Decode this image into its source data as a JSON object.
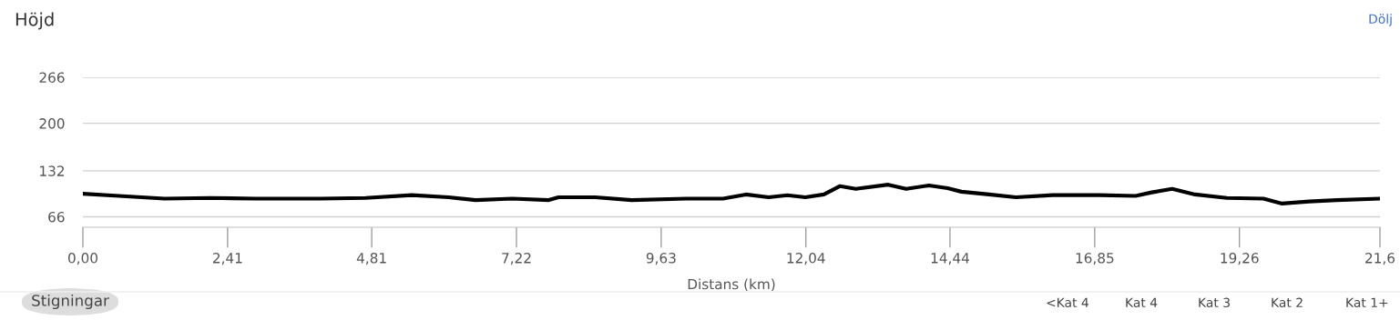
{
  "chart_data": {
    "type": "line",
    "title": "Höjd",
    "xlabel": "Distans (km)",
    "x": [
      0,
      0.6,
      1.36,
      2.12,
      2.88,
      3.95,
      4.71,
      5.48,
      6.09,
      6.54,
      7.15,
      7.76,
      7.92,
      8.53,
      9.14,
      10.05,
      10.66,
      11.04,
      11.42,
      11.73,
      12.03,
      12.34,
      12.61,
      12.87,
      13.41,
      13.71,
      14.09,
      14.4,
      14.63,
      15.09,
      15.54,
      16.15,
      16.92,
      17.53,
      17.8,
      18.14,
      18.52,
      19.05,
      19.66,
      19.97,
      20.42,
      20.88,
      21.6
    ],
    "series": [
      {
        "color": "#000000",
        "values": [
          99,
          96,
          92,
          93,
          92,
          92,
          93,
          97,
          94,
          90,
          92,
          90,
          94,
          94,
          90,
          92,
          92,
          98,
          94,
          97,
          94,
          98,
          110,
          106,
          112,
          106,
          111,
          107,
          102,
          98,
          94,
          97,
          97,
          96,
          101,
          106,
          98,
          93,
          92,
          85,
          88,
          90,
          92
        ]
      }
    ],
    "xlim": [
      0,
      21.6
    ],
    "xticks": [
      {
        "value": 0,
        "label": "0,00"
      },
      {
        "value": 2.41,
        "label": "2,41"
      },
      {
        "value": 4.81,
        "label": "4,81"
      },
      {
        "value": 7.22,
        "label": "7,22"
      },
      {
        "value": 9.63,
        "label": "9,63"
      },
      {
        "value": 12.04,
        "label": "12,04"
      },
      {
        "value": 14.44,
        "label": "14,44"
      },
      {
        "value": 16.85,
        "label": "16,85"
      },
      {
        "value": 19.26,
        "label": "19,26"
      },
      {
        "value": 21.6,
        "label": "21,6"
      }
    ],
    "ylim": [
      51,
      266
    ],
    "yticks": [
      66,
      132,
      200,
      266
    ],
    "grid": "y",
    "marker": "none",
    "line_style": "solid",
    "annotations": [
      "Dölj",
      "Stigningar",
      "<Kat 4",
      "Kat 4",
      "Kat 3",
      "Kat 2",
      "Kat 1+"
    ]
  }
}
